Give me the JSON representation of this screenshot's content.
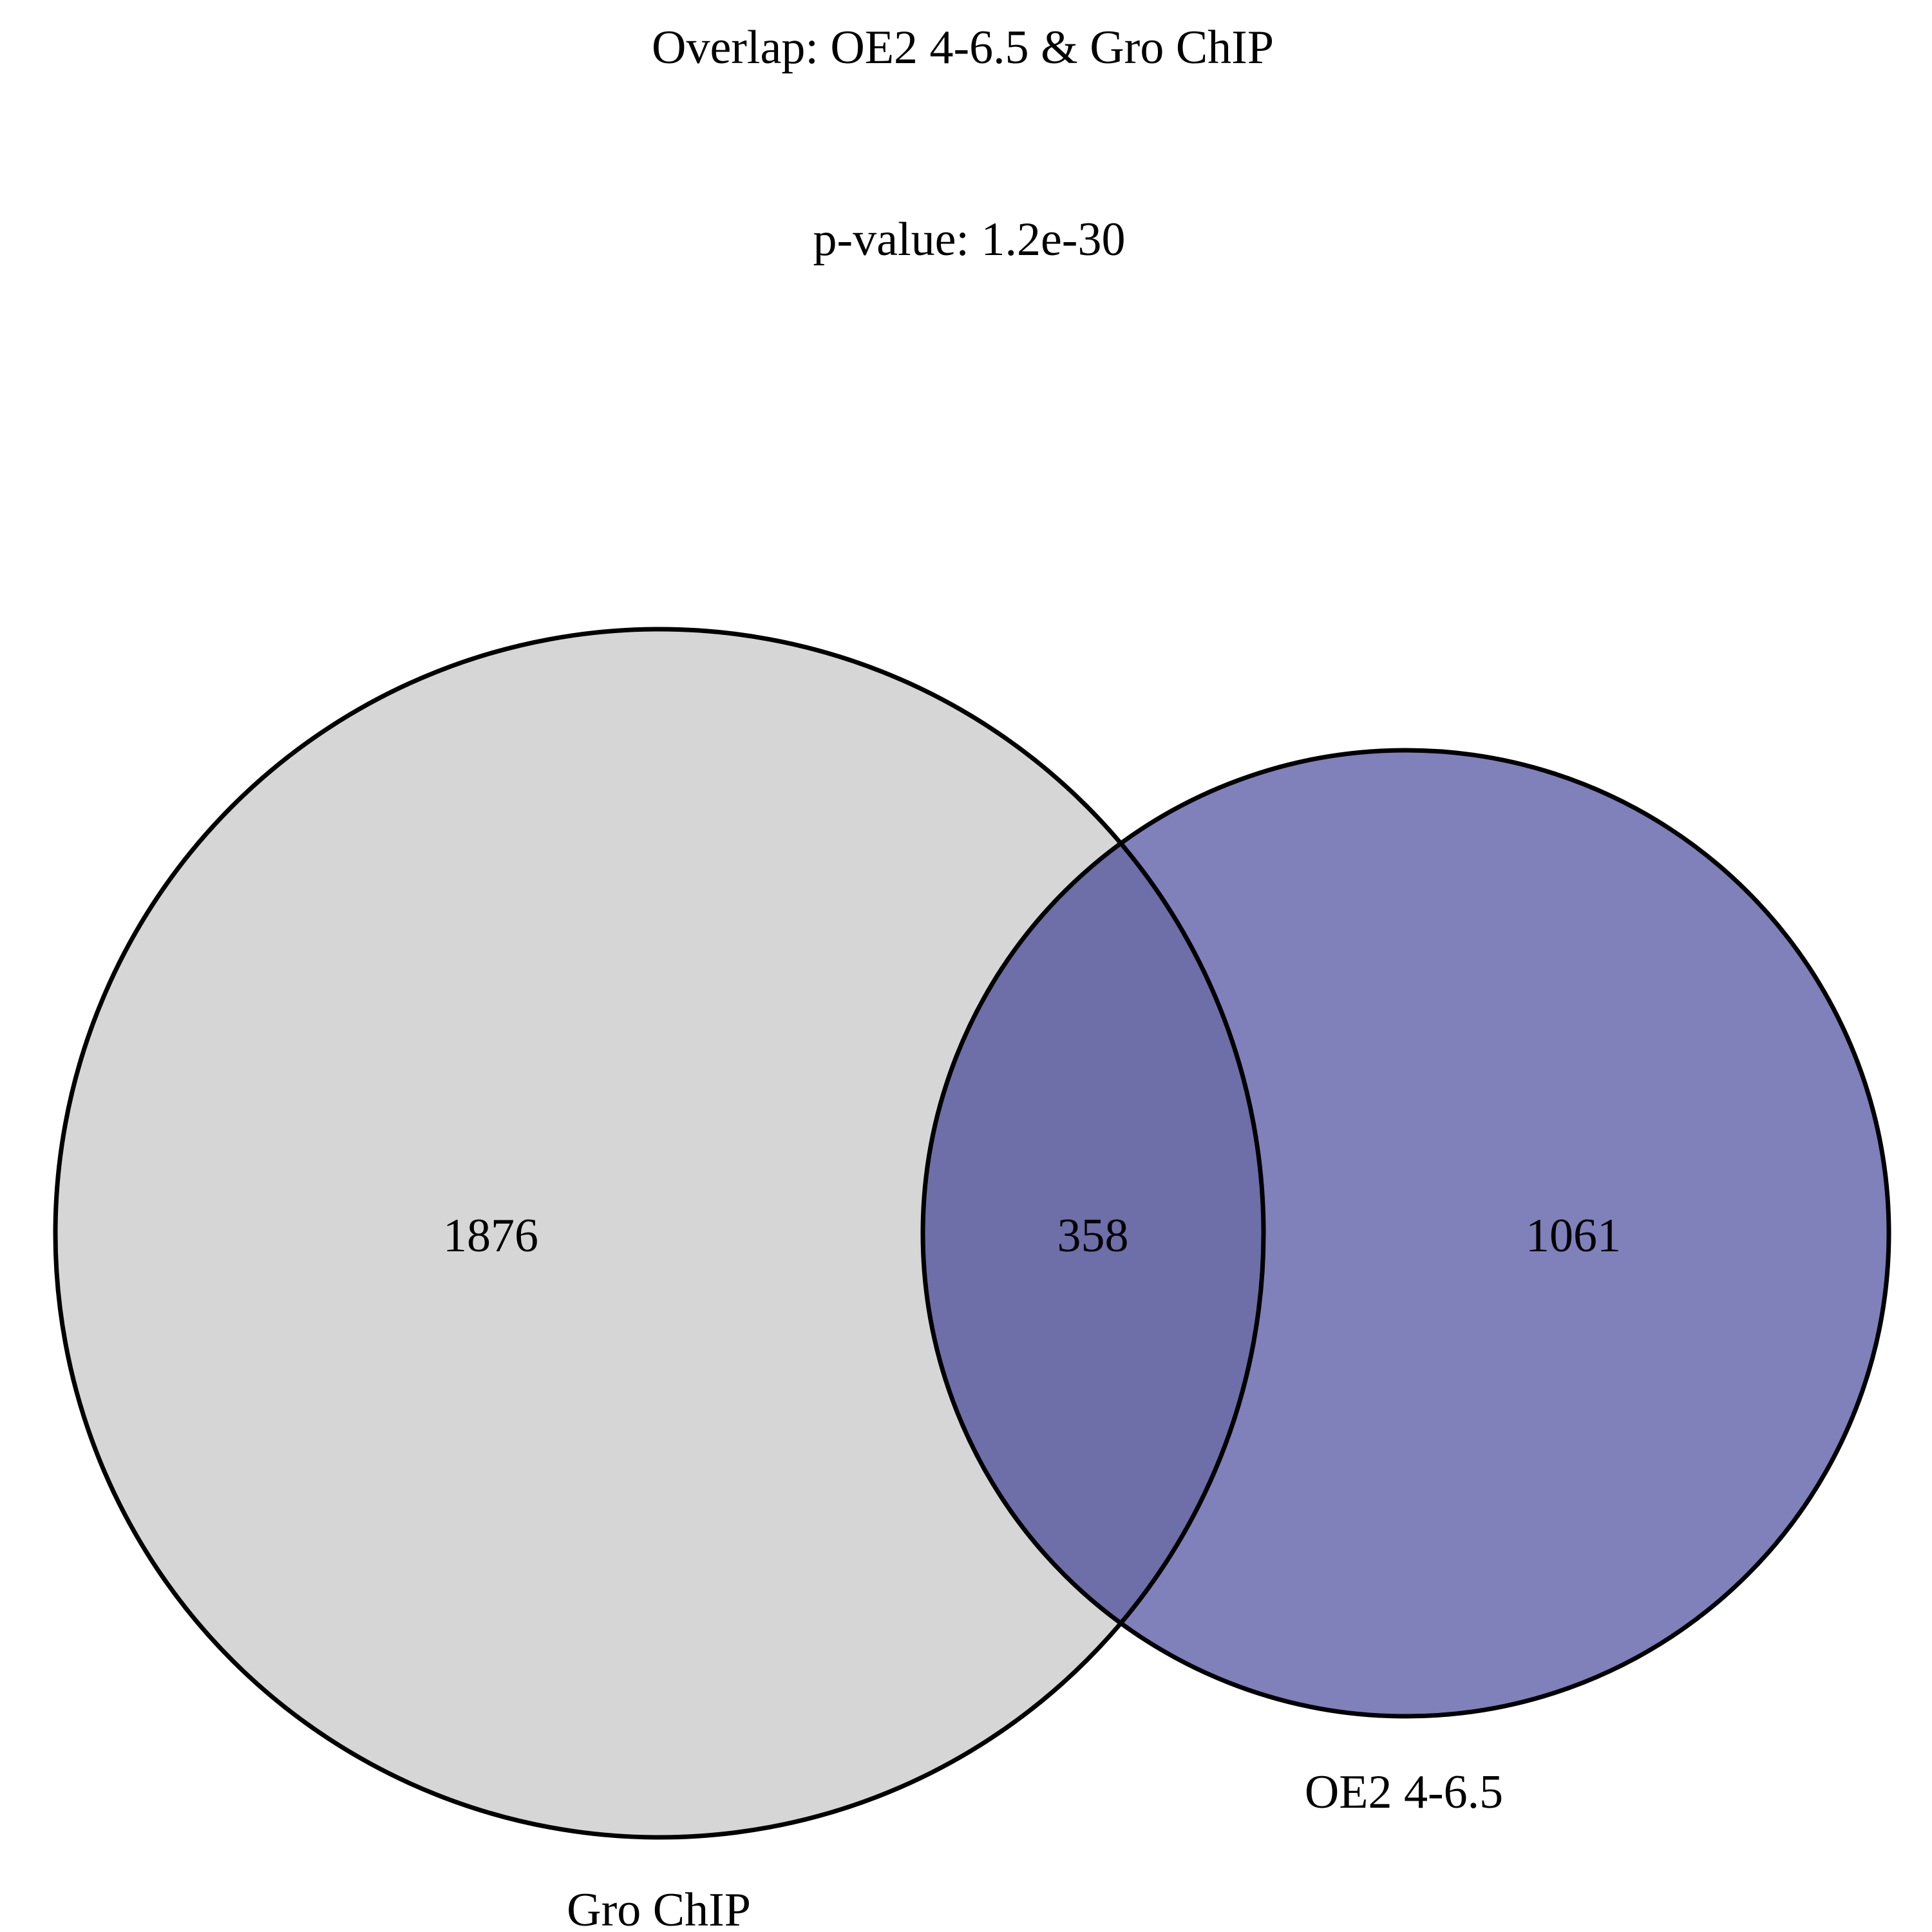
{
  "title": "Overlap: OE2 4-6.5 & Gro ChIP",
  "subtitle": "p-value: 1.2e-30",
  "sets": [
    {
      "name": "Gro ChIP",
      "label": "Gro ChIP",
      "only_count": "1876",
      "color": "#d6d6d6"
    },
    {
      "name": "OE2 4-6.5",
      "label": "OE2 4-6.5",
      "only_count": "1061",
      "color": "#8080bb"
    }
  ],
  "intersection": {
    "count": "358",
    "color": "#6e6ea8"
  },
  "outline_color": "#000000"
}
